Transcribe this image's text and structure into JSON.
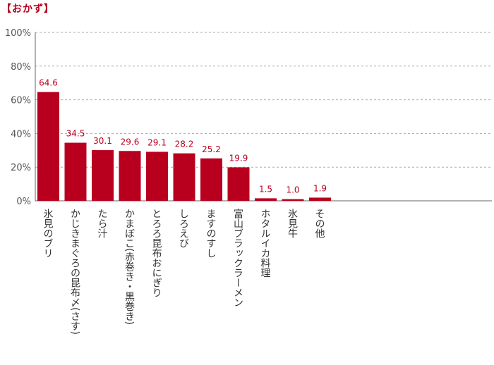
{
  "chart_data": {
    "type": "bar",
    "title": "【おかず】",
    "categories": [
      "氷見のブリ",
      "かじきまぐろの昆布〆(さす)",
      "たら汁",
      "かまぼこ(赤巻き・黒巻き)",
      "とろろ昆布おにぎり",
      "しろえび",
      "ますのすし",
      "富山ブラックラーメン",
      "ホタルイカ料理",
      "氷見牛",
      "その他"
    ],
    "values": [
      64.6,
      34.5,
      30.1,
      29.6,
      29.1,
      28.2,
      25.2,
      19.9,
      1.5,
      1.0,
      1.9
    ],
    "value_labels": [
      "64.6",
      "34.5",
      "30.1",
      "29.6",
      "29.1",
      "28.2",
      "25.2",
      "19.9",
      "1.5",
      "1.0",
      "1.9"
    ],
    "yticks": [
      "0%",
      "20%",
      "40%",
      "60%",
      "80%",
      "100%"
    ],
    "ylim": [
      0,
      100
    ],
    "grid": true,
    "bar_color": "#b8001e",
    "label_color": "#b8001e"
  }
}
